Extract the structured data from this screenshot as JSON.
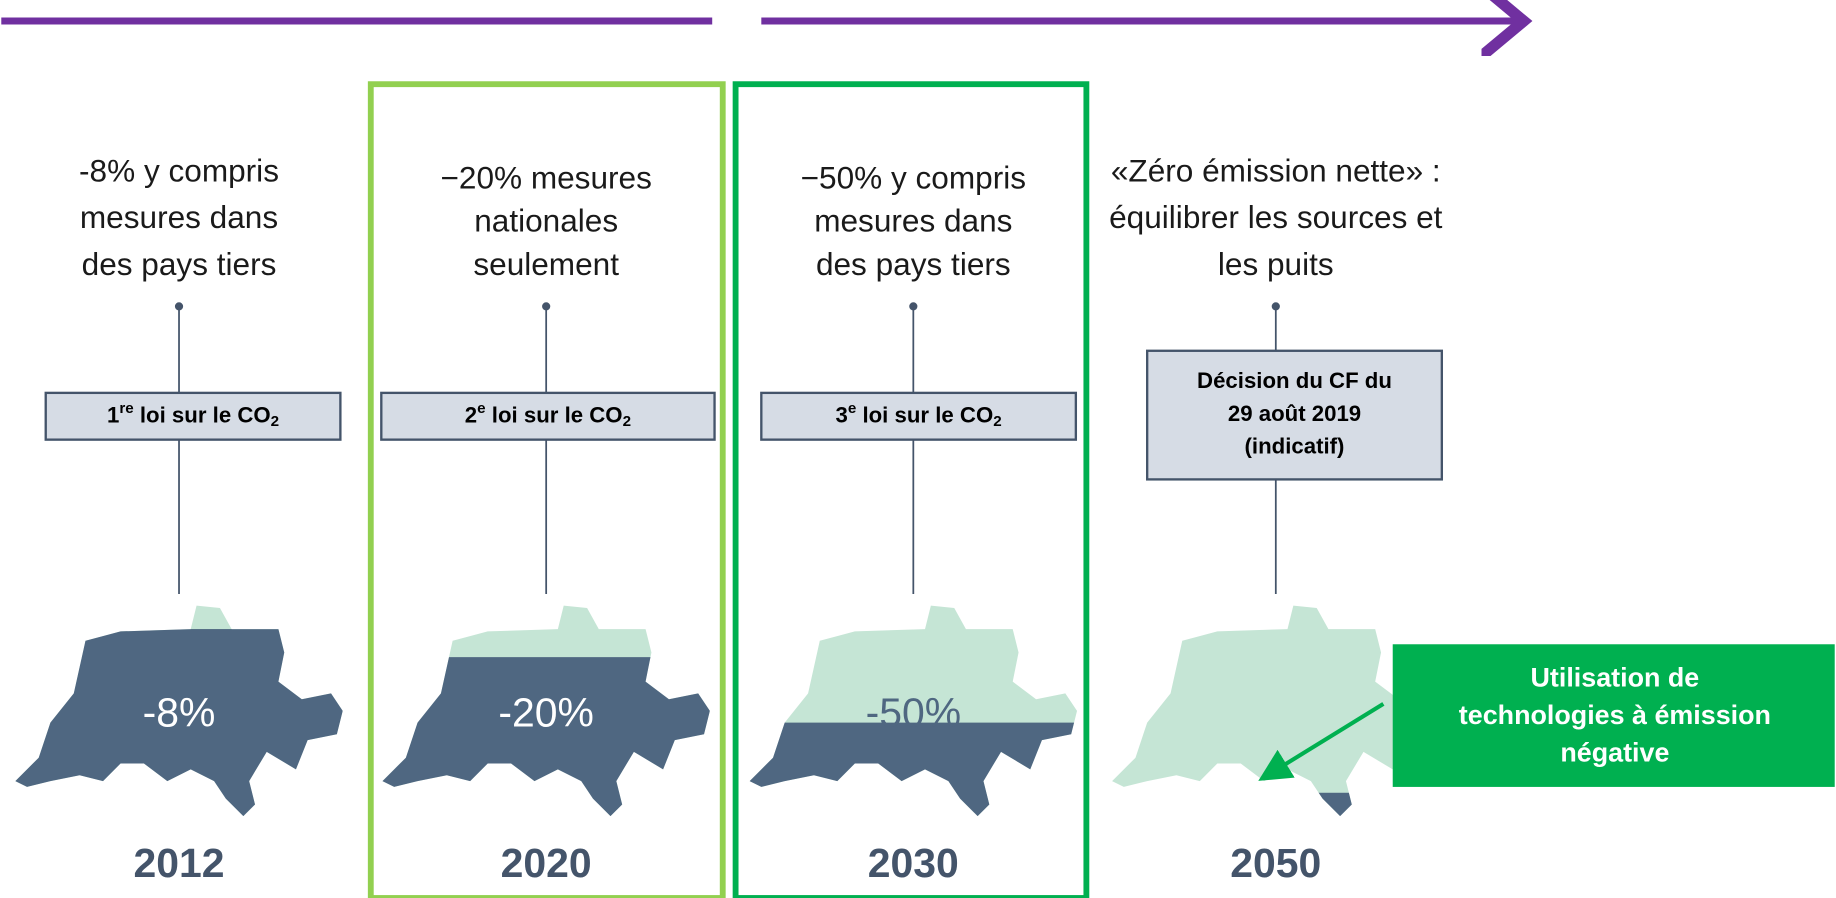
{
  "columns": [
    {
      "year": "2012",
      "description": [
        "-8% y compris",
        "mesures dans",
        "des pays tiers"
      ],
      "law": {
        "ordinal": "1",
        "suffix": "re",
        "text": " loi sur le  CO",
        "subscript": "2"
      },
      "reduction": "-8%"
    },
    {
      "year": "2020",
      "description": [
        "−20% mesures",
        "nationales",
        "seulement"
      ],
      "law": {
        "ordinal": "2",
        "suffix": "e",
        "text": " loi sur le  CO",
        "subscript": "2"
      },
      "reduction": "-20%"
    },
    {
      "year": "2030",
      "description": [
        "−50% y compris",
        "mesures dans",
        "des pays tiers"
      ],
      "law": {
        "ordinal": "3",
        "suffix": "e",
        "text": " loi sur le  CO",
        "subscript": "2"
      },
      "reduction": "-50%"
    },
    {
      "year": "2050",
      "description": [
        "«Zéro émission nette» :",
        "équilibrer les sources et",
        "les puits"
      ],
      "decision": [
        "Décision du CF du",
        "29 août 2019",
        "(indicatif)"
      ]
    }
  ],
  "callout": [
    "Utilisation de",
    "technologies à émission",
    "négative"
  ]
}
